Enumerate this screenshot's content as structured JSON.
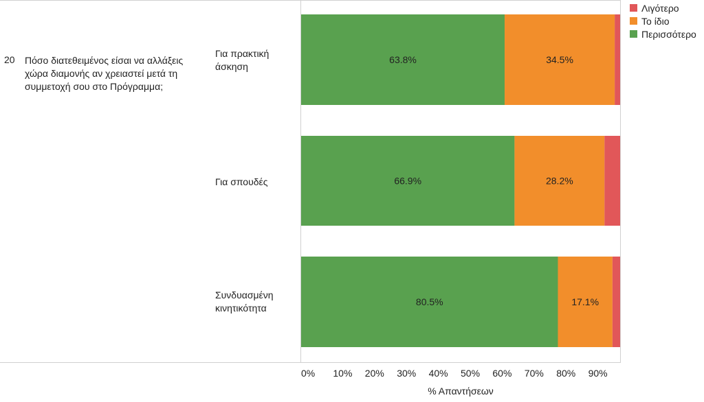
{
  "question": {
    "number": "20",
    "text": "Πόσο διατεθειμένος είσαι να αλλάξεις χώρα διαμονής αν χρειαστεί μετά τη συμμετοχή σου στο Πρόγραμμα;"
  },
  "chart_data": {
    "type": "bar",
    "orientation": "horizontal",
    "stacked": true,
    "categories": [
      "Για πρακτική άσκηση",
      "Για σπουδές",
      "Συνδυασμένη κινητικότητα"
    ],
    "series": [
      {
        "name": "Περισσότερο",
        "values": [
          63.8,
          66.9,
          80.5
        ],
        "labels": [
          "63.8%",
          "66.9%",
          "80.5%"
        ],
        "color": "#59a14f"
      },
      {
        "name": "Το ίδιο",
        "values": [
          34.5,
          28.2,
          17.1
        ],
        "labels": [
          "34.5%",
          "28.2%",
          "17.1%"
        ],
        "color": "#f28e2b"
      },
      {
        "name": "Λιγότερο",
        "values": [
          1.7,
          4.9,
          2.4
        ],
        "labels": [
          "",
          "",
          ""
        ],
        "color": "#e15759"
      }
    ],
    "legend_order": [
      "Λιγότερο",
      "Το ίδιο",
      "Περισσότερο"
    ],
    "legend_position": "top-right",
    "xlabel": "% Απαντήσεων",
    "xlim": [
      0,
      100
    ],
    "xticks": [
      "0%",
      "10%",
      "20%",
      "30%",
      "40%",
      "50%",
      "60%",
      "70%",
      "80%",
      "90%"
    ],
    "grid": false
  }
}
